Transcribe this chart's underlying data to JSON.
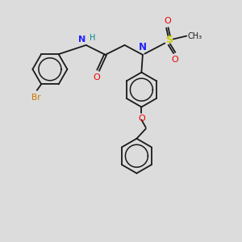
{
  "bg_color": "#dcdcdc",
  "bond_color": "#1a1a1a",
  "N_color": "#2222ff",
  "H_color": "#008888",
  "O_color": "#ee0000",
  "S_color": "#cccc00",
  "Br_color": "#cc7700",
  "lw": 1.3,
  "dbo": 0.055,
  "ring_r": 0.72,
  "xlim": [
    0,
    10
  ],
  "ylim": [
    0,
    10
  ]
}
